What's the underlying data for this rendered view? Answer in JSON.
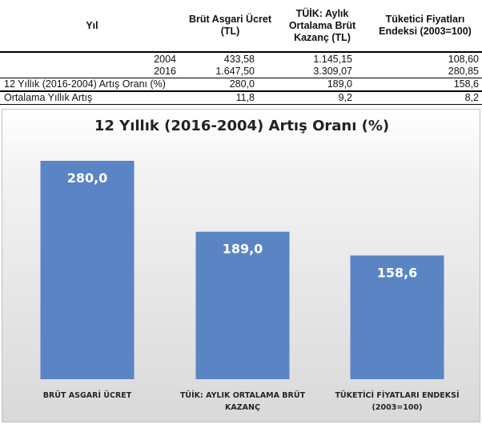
{
  "table": {
    "headers": [
      "Yıl",
      "Brüt Asgari Ücret\n(TL)",
      "TÜİK: Aylık\nOrtalama Brüt\nKazanç (TL)",
      "Tüketici Fiyatları\nEndeksi (2003=100)"
    ],
    "year_rows": [
      {
        "year": "2004",
        "v1": "433,58",
        "v2": "1.145,15",
        "v3": "108,60"
      },
      {
        "year": "2016",
        "v1": "1.647,50",
        "v2": "3.309,07",
        "v3": "280,85"
      }
    ],
    "rate_row": {
      "label": "12 Yıllık (2016-2004)  Artış Oranı (%)",
      "v1": "280,0",
      "v2": "189,0",
      "v3": "158,6"
    },
    "avg_row": {
      "label": "Ortalama Yıllık Artış",
      "v1": "11,8",
      "v2": "9,2",
      "v3": "8,2"
    }
  },
  "chart_data": {
    "type": "bar",
    "title": "12 Yıllık (2016-2004)  Artış Oranı (%)",
    "categories": [
      "BRÜT ASGARİ ÜCRET",
      "TÜİK: AYLIK ORTALAMA BRÜT KAZANÇ",
      "TÜKETİCİ FİYATLARI ENDEKSİ (2003=100)"
    ],
    "category_lines": [
      [
        "BRÜT ASGARİ ÜCRET"
      ],
      [
        "TÜİK: AYLIK ORTALAMA BRÜT",
        "KAZANÇ"
      ],
      [
        "TÜKETİCİ FİYATLARI ENDEKSİ",
        "(2003=100)"
      ]
    ],
    "values": [
      280.0,
      189.0,
      158.6
    ],
    "value_labels": [
      "280,0",
      "189,0",
      "158,6"
    ],
    "ylim": [
      0,
      280
    ],
    "bar_color": "#5b84c4",
    "grid": false,
    "legend": "none"
  }
}
